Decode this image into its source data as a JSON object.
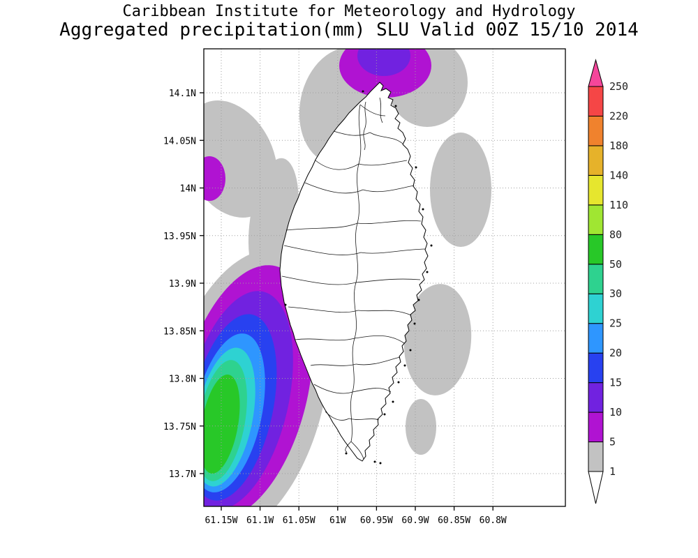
{
  "header": {
    "title_line1": "Caribbean Institute for Meteorology and Hydrology",
    "title_line2": "Aggregated precipitation(mm) SLU Valid 00Z 15/10 2014"
  },
  "chart_data": {
    "type": "heatmap",
    "subtype": "filled-contour precipitation analysis map",
    "title": "Caribbean Institute for Meteorology and Hydrology",
    "subtitle": "Aggregated precipitation(mm) SLU Valid 00Z 15/10 2014",
    "region": "Saint Lucia (SLU)",
    "variable": "Aggregated precipitation",
    "units": "mm",
    "valid_time": "00Z 15/10 2014",
    "x_ticks": [
      "61.15W",
      "61.1W",
      "61.05W",
      "61W",
      "60.95W",
      "60.9W",
      "60.85W",
      "60.8W"
    ],
    "y_ticks": [
      "14.1N",
      "14.05N",
      "14N",
      "13.95N",
      "13.9N",
      "13.85N",
      "13.8N",
      "13.75N",
      "13.7N"
    ],
    "grid": "dotted",
    "legend_position": "right",
    "colorbar": {
      "levels": [
        1,
        5,
        10,
        15,
        20,
        25,
        30,
        50,
        80,
        110,
        140,
        180,
        220,
        250
      ],
      "segments": [
        {
          "range": "1-5",
          "color": "gray"
        },
        {
          "range": "5-10",
          "color": "l5"
        },
        {
          "range": "10-15",
          "color": "l10"
        },
        {
          "range": "15-20",
          "color": "l15"
        },
        {
          "range": "20-25",
          "color": "l20"
        },
        {
          "range": "25-30",
          "color": "l25"
        },
        {
          "range": "30-50",
          "color": "l30"
        },
        {
          "range": "50-80",
          "color": "l50"
        },
        {
          "range": "80-110",
          "color": "l80"
        },
        {
          "range": "110-140",
          "color": "l110"
        },
        {
          "range": "140-180",
          "color": "l140"
        },
        {
          "range": "180-220",
          "color": "l180"
        },
        {
          "range": "220-250",
          "color": "l220"
        }
      ],
      "above_color": "l250",
      "below_color": "#ffffff",
      "palette": {
        "gray": "#c2c2c2",
        "l5": "#b013d2",
        "l10": "#7122e0",
        "l15": "#2841f0",
        "l20": "#2e96ff",
        "l25": "#2ed2d2",
        "l30": "#2ed28f",
        "l50": "#28c828",
        "l80": "#a0e632",
        "l110": "#e6e62e",
        "l140": "#e6b22a",
        "l180": "#f0822d",
        "l220": "#f54646",
        "l250": "#f5469b"
      }
    },
    "precip_features": [
      {
        "area": "offshore southwest of the island",
        "peak_mm": "50-80",
        "rings_mm": [
          5,
          10,
          15,
          20,
          25,
          30,
          50
        ],
        "approx_location": "61.12W 13.76N"
      },
      {
        "area": "north of the island at top edge of plot",
        "peak_mm": "10-15",
        "approx_location": "61.0W 14.12N"
      },
      {
        "area": "west edge of plot near 14N",
        "peak_mm": "5-10",
        "approx_location": "61.17W 14.0N"
      },
      {
        "area": "scattered bands west and east of the island",
        "peak_mm": "1-5"
      },
      {
        "area": "island interior",
        "peak_mm": "<1"
      }
    ]
  }
}
